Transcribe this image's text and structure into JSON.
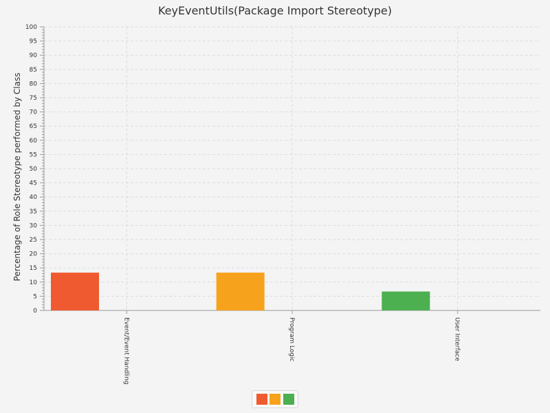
{
  "chart_data": {
    "type": "bar",
    "title": "KeyEventUtils(Package Import Stereotype)",
    "xlabel": "",
    "ylabel": "Percentage of Role Stereotype performed by Class",
    "ylim": [
      0,
      100
    ],
    "y_ticks": [
      "0",
      "5",
      "10",
      "15",
      "20",
      "25",
      "30",
      "35",
      "40",
      "45",
      "50",
      "55",
      "60",
      "65",
      "70",
      "75",
      "80",
      "85",
      "90",
      "95",
      "100"
    ],
    "categories": [
      "Event/Event Handling",
      "Program Logic",
      "User Interface"
    ],
    "values": [
      13.33,
      13.33,
      6.67
    ],
    "colors": [
      "#f05a30",
      "#f7a21c",
      "#4caf50"
    ],
    "grid": true,
    "legend": {
      "position": "bottom",
      "swatch_colors": [
        "#f05a30",
        "#f7a21c",
        "#4caf50"
      ]
    }
  }
}
